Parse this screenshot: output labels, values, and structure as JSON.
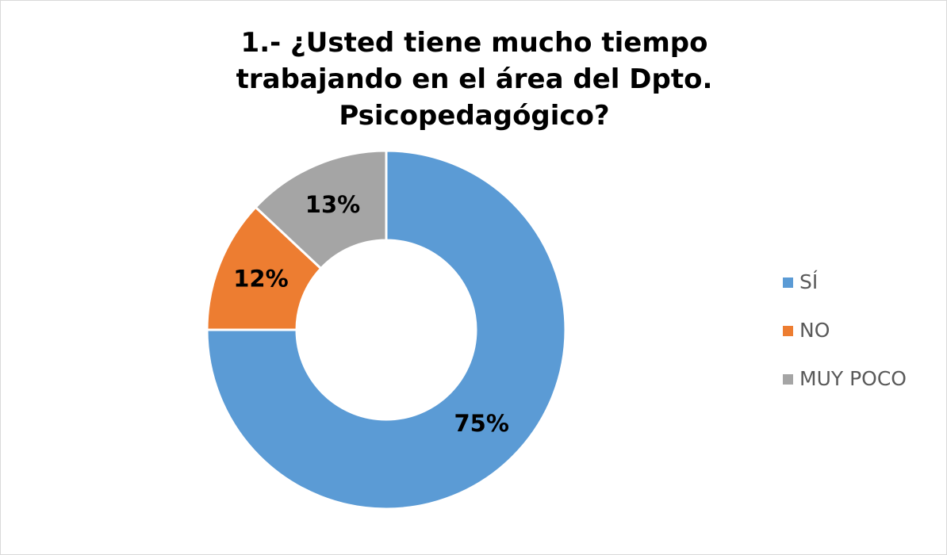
{
  "chart_data": {
    "type": "donut",
    "title": "1.- ¿Usted tiene mucho tiempo trabajando en el área del Dpto. Psicopedagógico?",
    "categories": [
      "SÍ",
      "NO",
      "MUY POCO"
    ],
    "values": [
      75,
      12,
      13
    ],
    "value_labels": [
      "75%",
      "12%",
      "13%"
    ],
    "colors": [
      "#5b9bd5",
      "#ed7d31",
      "#a5a5a5"
    ],
    "legend": "right"
  }
}
